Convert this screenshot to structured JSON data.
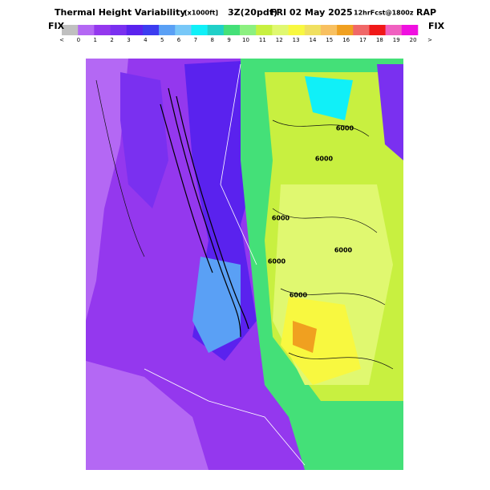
{
  "header": {
    "title": [
      "Thermal Height Variability",
      "[x1000ft]",
      "3Z(20pdt)",
      "FRI 02 May 2025",
      "12hrFcst@1800z",
      "RAP"
    ]
  },
  "legend": {
    "left_label": "FIX",
    "right_label": "FIX",
    "colors": [
      "#c0c0c0",
      "#b468f4",
      "#9438ee",
      "#7a30f0",
      "#5a22ee",
      "#3c3cf0",
      "#5aa0f5",
      "#78c8f8",
      "#10f0f8",
      "#20d0c8",
      "#44e078",
      "#8cf080",
      "#c8f040",
      "#e0f870",
      "#f8f840",
      "#f0e060",
      "#f8c060",
      "#f0a020",
      "#f06868",
      "#f01818",
      "#f060c0",
      "#f010e0"
    ],
    "labels": [
      "<",
      "0",
      "1",
      "2",
      "3",
      "4",
      "5",
      "6",
      "7",
      "8",
      "9",
      "10",
      "11",
      "12",
      "13",
      "14",
      "15",
      "16",
      "17",
      "18",
      "19",
      "20",
      ">"
    ]
  },
  "map": {
    "contour_labels": [
      "6000",
      "6000",
      "6000",
      "6000",
      "6000",
      "6000"
    ]
  }
}
